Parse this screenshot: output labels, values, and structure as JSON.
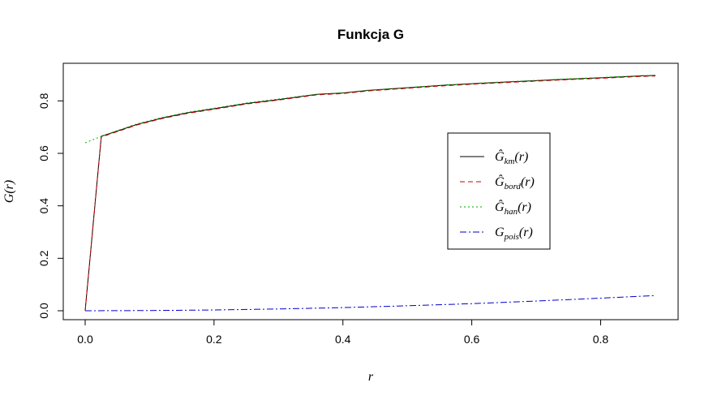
{
  "chart_data": {
    "type": "line",
    "title": "Funkcja G",
    "xlabel": "r",
    "ylabel": "G(r)",
    "xlim": [
      0.0,
      0.885
    ],
    "ylim": [
      0.0,
      0.9
    ],
    "x_ticks": [
      "0.0",
      "0.2",
      "0.4",
      "0.6",
      "0.8"
    ],
    "y_ticks": [
      "0.0",
      "0.2",
      "0.4",
      "0.6",
      "0.8"
    ],
    "legend_position": "right",
    "series": [
      {
        "name": "Ĝ_km(r)",
        "label_main": "Ĝ",
        "label_sub": "km",
        "label_tail": "(r)",
        "color": "#000000",
        "dash": "",
        "points": [
          [
            0.0,
            0.0
          ],
          [
            0.025,
            0.665
          ],
          [
            0.05,
            0.685
          ],
          [
            0.08,
            0.71
          ],
          [
            0.12,
            0.735
          ],
          [
            0.16,
            0.755
          ],
          [
            0.2,
            0.77
          ],
          [
            0.25,
            0.79
          ],
          [
            0.3,
            0.805
          ],
          [
            0.36,
            0.825
          ],
          [
            0.4,
            0.83
          ],
          [
            0.44,
            0.84
          ],
          [
            0.5,
            0.85
          ],
          [
            0.56,
            0.86
          ],
          [
            0.62,
            0.868
          ],
          [
            0.68,
            0.875
          ],
          [
            0.74,
            0.882
          ],
          [
            0.8,
            0.888
          ],
          [
            0.86,
            0.895
          ],
          [
            0.885,
            0.897
          ]
        ]
      },
      {
        "name": "Ĝ_bord(r)",
        "label_main": "Ĝ",
        "label_sub": "bord",
        "label_tail": "(r)",
        "color": "#cc0000",
        "dash": "6,4",
        "points": [
          [
            0.0,
            0.0
          ],
          [
            0.025,
            0.662
          ],
          [
            0.05,
            0.683
          ],
          [
            0.08,
            0.708
          ],
          [
            0.12,
            0.733
          ],
          [
            0.16,
            0.753
          ],
          [
            0.2,
            0.768
          ],
          [
            0.25,
            0.788
          ],
          [
            0.3,
            0.803
          ],
          [
            0.36,
            0.823
          ],
          [
            0.4,
            0.828
          ],
          [
            0.44,
            0.838
          ],
          [
            0.5,
            0.848
          ],
          [
            0.56,
            0.858
          ],
          [
            0.62,
            0.866
          ],
          [
            0.68,
            0.873
          ],
          [
            0.74,
            0.88
          ],
          [
            0.8,
            0.886
          ],
          [
            0.86,
            0.893
          ],
          [
            0.885,
            0.895
          ]
        ]
      },
      {
        "name": "Ĝ_han(r)",
        "label_main": "Ĝ",
        "label_sub": "han",
        "label_tail": "(r)",
        "color": "#00aa00",
        "dash": "2,3",
        "points": [
          [
            0.0,
            0.64
          ],
          [
            0.025,
            0.665
          ],
          [
            0.05,
            0.687
          ],
          [
            0.08,
            0.712
          ],
          [
            0.12,
            0.737
          ],
          [
            0.16,
            0.757
          ],
          [
            0.2,
            0.772
          ],
          [
            0.25,
            0.792
          ],
          [
            0.3,
            0.807
          ],
          [
            0.36,
            0.826
          ],
          [
            0.4,
            0.831
          ],
          [
            0.44,
            0.841
          ],
          [
            0.5,
            0.851
          ],
          [
            0.56,
            0.861
          ],
          [
            0.62,
            0.869
          ],
          [
            0.68,
            0.876
          ],
          [
            0.74,
            0.883
          ],
          [
            0.8,
            0.889
          ],
          [
            0.86,
            0.896
          ],
          [
            0.885,
            0.898
          ]
        ]
      },
      {
        "name": "G_pois(r)",
        "label_main": "G",
        "label_sub": "pois",
        "label_tail": "(r)",
        "color": "#0000cc",
        "dash": "8,3,2,3",
        "points": [
          [
            0.0,
            0.0
          ],
          [
            0.1,
            0.0008
          ],
          [
            0.2,
            0.003
          ],
          [
            0.3,
            0.0068
          ],
          [
            0.4,
            0.012
          ],
          [
            0.5,
            0.019
          ],
          [
            0.6,
            0.027
          ],
          [
            0.7,
            0.037
          ],
          [
            0.8,
            0.048
          ],
          [
            0.885,
            0.058
          ]
        ]
      }
    ]
  }
}
